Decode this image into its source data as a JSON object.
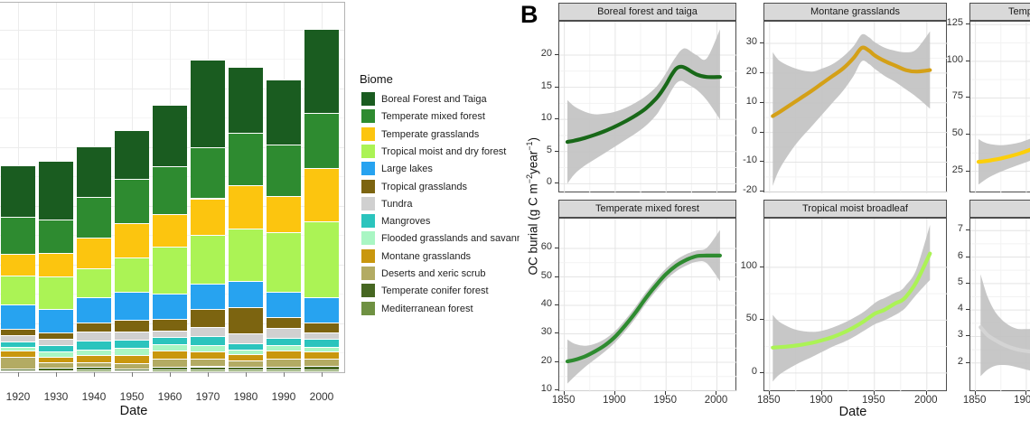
{
  "panel_a": {
    "xlabel": "Date",
    "legend": {
      "title": "Biome",
      "items": [
        {
          "label": "Boreal Forest and Taiga",
          "color": "#1a5c20"
        },
        {
          "label": "Temperate mixed forest",
          "color": "#2e8b30"
        },
        {
          "label": "Temperate grasslands",
          "color": "#fcc50f"
        },
        {
          "label": "Tropical moist and dry forest",
          "color": "#abf355"
        },
        {
          "label": "Large lakes",
          "color": "#27a3f0"
        },
        {
          "label": "Tropical grasslands",
          "color": "#7c6410"
        },
        {
          "label": "Tundra",
          "color": "#d0d0d0"
        },
        {
          "label": "Mangroves",
          "color": "#2bc4bd"
        },
        {
          "label": "Flooded grasslands and savann",
          "color": "#a9f6c3"
        },
        {
          "label": "Montane grasslands",
          "color": "#c9970e"
        },
        {
          "label": "Deserts and xeric scrub",
          "color": "#b3ab63"
        },
        {
          "label": "Temperate conifer forest",
          "color": "#476722"
        },
        {
          "label": "Mediterranean forest",
          "color": "#6f9142"
        }
      ]
    }
  },
  "panel_b": {
    "label": "B",
    "xlabel": "Date",
    "ylabel_parts": [
      "OC burial (g C m",
      "−2",
      "year",
      "−1",
      ")"
    ]
  },
  "chart_data": [
    {
      "id": "A_stacked_bars",
      "type": "bar",
      "stacked": true,
      "xlabel": "Date",
      "note_units": "relative units (y-axis cropped out of screenshot)",
      "categories": [
        "1920",
        "1930",
        "1940",
        "1950",
        "1960",
        "1970",
        "1980",
        "1990",
        "2000"
      ],
      "stack_order": "first series = top of bar",
      "series": [
        {
          "name": "Boreal Forest and Taiga",
          "color": "#1a5c20",
          "values": [
            57.4,
            65,
            56.6,
            54,
            68,
            97,
            73,
            72,
            92.6
          ]
        },
        {
          "name": "Temperate mixed forest",
          "color": "#2e8b30",
          "values": [
            40.7,
            37,
            44.4,
            48.4,
            53,
            56.3,
            58,
            56.7,
            61.4
          ]
        },
        {
          "name": "Temperate grasslands",
          "color": "#fcc50f",
          "values": [
            24.3,
            26,
            34,
            38.3,
            36,
            40,
            48,
            40,
            59.3
          ]
        },
        {
          "name": "Tropical moist and dry forest",
          "color": "#abf355",
          "values": [
            31.7,
            36,
            32.3,
            38.3,
            52,
            54.4,
            58,
            66,
            83.3
          ]
        },
        {
          "name": "Large lakes",
          "color": "#27a3f0",
          "values": [
            27.6,
            26.7,
            27.7,
            30.7,
            28.3,
            28.3,
            29,
            28,
            28.4
          ]
        },
        {
          "name": "Tropical grasslands",
          "color": "#7c6410",
          "values": [
            6.7,
            6.7,
            10,
            13.3,
            13.4,
            20,
            29,
            11.7,
            10.6
          ]
        },
        {
          "name": "Tundra",
          "color": "#d0d0d0",
          "values": [
            6.7,
            7,
            10,
            8.4,
            7,
            10,
            11,
            11.6,
            7.7
          ]
        },
        {
          "name": "Mangroves",
          "color": "#2bc4bd",
          "values": [
            6,
            6.6,
            10,
            9.3,
            7.4,
            10,
            7,
            7.7,
            8.3
          ]
        },
        {
          "name": "Flooded grasslands and savannas",
          "color": "#a9f6c3",
          "values": [
            4.6,
            6,
            6.6,
            7.7,
            7.6,
            6.7,
            5,
            6,
            5
          ]
        },
        {
          "name": "Montane grasslands",
          "color": "#c9970e",
          "values": [
            6.7,
            6.7,
            7.4,
            9,
            8.4,
            8.3,
            7,
            9,
            8.4
          ]
        },
        {
          "name": "Deserts and xeric scrub",
          "color": "#b3ab63",
          "values": [
            12.7,
            6,
            5.3,
            6.6,
            9,
            8.3,
            7,
            9,
            8.3
          ]
        },
        {
          "name": "Temperate conifer forest",
          "color": "#476722",
          "values": [
            2,
            2.7,
            2.7,
            2,
            3.6,
            3.5,
            3,
            3,
            3.5
          ]
        },
        {
          "name": "Mediterranean forest",
          "color": "#6f9142",
          "values": [
            1.3,
            1,
            2.3,
            0.7,
            1.6,
            2,
            2,
            2,
            2.2
          ]
        }
      ]
    },
    {
      "id": "B_facet_lines",
      "type": "line",
      "xlabel": "Date",
      "ylabel": "OC burial (g C m-2 year-1)",
      "xlim": [
        1845,
        2020
      ],
      "xticks": [
        1850,
        1900,
        1950,
        2000
      ],
      "facets": [
        {
          "label": "Boreal forest and taiga",
          "col": 0,
          "row": 0,
          "color": "#186818",
          "ylim": [
            -1.5,
            25.2
          ],
          "yticks": [
            20,
            15,
            10,
            5,
            0
          ],
          "x": [
            1853,
            1860,
            1870,
            1880,
            1890,
            1900,
            1910,
            1920,
            1930,
            1940,
            1945,
            1950,
            1955,
            1960,
            1965,
            1970,
            1980,
            1990,
            2003
          ],
          "y": [
            6.5,
            6.7,
            7.1,
            7.6,
            8.2,
            8.9,
            9.7,
            10.6,
            11.7,
            13.2,
            14.2,
            15.4,
            16.8,
            17.9,
            18.2,
            17.9,
            17.0,
            16.6,
            16.6
          ],
          "ci_upper": [
            13.0,
            12.0,
            11.2,
            10.8,
            10.9,
            11.2,
            11.8,
            12.6,
            13.6,
            15.0,
            16.0,
            17.2,
            18.6,
            19.8,
            20.8,
            21.0,
            20.0,
            19.5,
            24.0
          ],
          "ci_lower": [
            0.0,
            1.5,
            2.8,
            3.8,
            4.8,
            5.8,
            6.8,
            7.8,
            9.0,
            10.6,
            11.8,
            13.0,
            14.4,
            15.6,
            16.0,
            15.6,
            14.6,
            13.0,
            10.0
          ]
        },
        {
          "label": "Montane grasslands",
          "col": 1,
          "row": 0,
          "color": "#d4a017",
          "ylim": [
            -20.5,
            37.3
          ],
          "yticks": [
            30,
            20,
            10,
            0,
            -10,
            -20
          ],
          "x": [
            1853,
            1860,
            1875,
            1890,
            1900,
            1910,
            1920,
            1930,
            1938,
            1945,
            1950,
            1960,
            1970,
            1980,
            1990,
            2003
          ],
          "y": [
            5.5,
            7,
            10.5,
            14,
            16.5,
            19,
            21.5,
            25,
            28.5,
            27.5,
            26,
            24,
            22.5,
            21,
            20.5,
            21
          ],
          "ci_upper": [
            27,
            24,
            21.5,
            20.5,
            21.5,
            23,
            25.5,
            29,
            33,
            32,
            30.5,
            28.5,
            27.5,
            27,
            28,
            34
          ],
          "ci_lower": [
            -18,
            -12,
            -4,
            2,
            6,
            10,
            14,
            19,
            24,
            23,
            21.5,
            19,
            17,
            14.5,
            12,
            8
          ]
        },
        {
          "label": "Temp",
          "col": 2,
          "row": 0,
          "color": "#fccf0a",
          "label_x": 1115,
          "ylim": [
            10,
            127
          ],
          "yticks": [
            125,
            100,
            75,
            50,
            25
          ],
          "x": [
            1853,
            1858,
            1865,
            1875,
            1885,
            1895,
            1905,
            1915
          ],
          "y": [
            31.5,
            31.8,
            32.5,
            33.8,
            35.5,
            37.5,
            40,
            42.5
          ],
          "ci_upper": [
            47,
            45,
            43.5,
            42.8,
            43.5,
            45,
            47.5,
            50
          ],
          "ci_lower": [
            16,
            18.5,
            21.5,
            24.8,
            27.5,
            30,
            32.5,
            35
          ]
        },
        {
          "label": "Temperate mixed forest",
          "col": 0,
          "row": 1,
          "color": "#2e8b30",
          "ylim": [
            9.5,
            70.5
          ],
          "yticks": [
            60,
            50,
            40,
            30,
            20,
            10
          ],
          "x": [
            1853,
            1860,
            1870,
            1880,
            1890,
            1900,
            1910,
            1920,
            1930,
            1940,
            1950,
            1960,
            1970,
            1980,
            1990,
            2003
          ],
          "y": [
            20.3,
            20.8,
            22,
            23.8,
            26,
            29,
            33,
            37.5,
            42.5,
            47,
            51,
            54,
            56,
            57.3,
            57.5,
            57.5
          ],
          "ci_upper": [
            28,
            26.5,
            25.8,
            26.5,
            28.2,
            31,
            35,
            39.5,
            44.5,
            49,
            53,
            56,
            58,
            59.3,
            60.2,
            66.5
          ],
          "ci_lower": [
            12.5,
            15,
            18.2,
            21,
            23.8,
            27,
            31,
            35.5,
            40.5,
            45,
            49,
            52,
            54,
            55.3,
            54.8,
            48.5
          ]
        },
        {
          "label": "Tropical moist broadleaf",
          "col": 1,
          "row": 1,
          "color": "#abf355",
          "ylim": [
            -18,
            146
          ],
          "yticks": [
            100,
            50,
            0
          ],
          "x": [
            1853,
            1860,
            1875,
            1890,
            1900,
            1910,
            1920,
            1930,
            1940,
            1950,
            1955,
            1960,
            1970,
            1975,
            1980,
            1990,
            2003
          ],
          "y": [
            24,
            24.5,
            26,
            28.5,
            31,
            34,
            38,
            43,
            49,
            56,
            58,
            60,
            66,
            68,
            72,
            86,
            113
          ],
          "ci_upper": [
            55,
            48,
            41,
            39,
            40,
            43,
            47,
            52,
            58,
            66,
            69,
            71,
            76,
            78,
            83,
            98,
            140
          ],
          "ci_lower": [
            -8,
            -1,
            8,
            15,
            20,
            25,
            29,
            34,
            40,
            46,
            48,
            50,
            55,
            58,
            62,
            74,
            88
          ]
        },
        {
          "label": "",
          "col": 2,
          "row": 1,
          "color": "#d4d4d4",
          "ylim": [
            0.9,
            7.45
          ],
          "yticks": [
            7,
            6,
            5,
            4,
            3,
            2
          ],
          "x": [
            1855,
            1862,
            1870,
            1880,
            1890,
            1900,
            1910
          ],
          "y": [
            3.35,
            3.05,
            2.85,
            2.65,
            2.52,
            2.45,
            2.42
          ],
          "ci_upper": [
            5.35,
            4.5,
            3.9,
            3.5,
            3.3,
            3.28,
            3.3
          ],
          "ci_lower": [
            1.5,
            1.75,
            1.9,
            1.92,
            1.85,
            1.75,
            1.65
          ]
        }
      ]
    }
  ]
}
